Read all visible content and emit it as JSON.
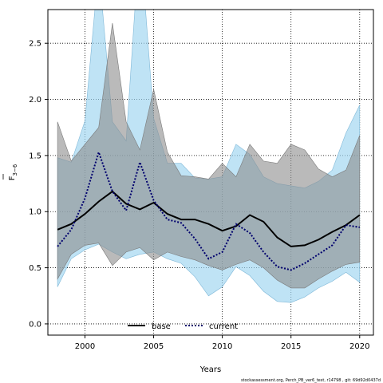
{
  "chart_data": {
    "type": "line",
    "title": "",
    "xlabel": "Years",
    "ylabel_main": "F",
    "ylabel_sub": "3−6",
    "xlim": [
      1997.3,
      2021.0
    ],
    "ylim": [
      -0.1,
      2.8
    ],
    "xticks": [
      2000,
      2005,
      2010,
      2015,
      2020
    ],
    "yticks": [
      "0.0",
      "0.5",
      "1.0",
      "1.5",
      "2.0",
      "2.5"
    ],
    "grid": true,
    "legend_position": "bottom-center",
    "x": [
      1998,
      1999,
      2000,
      2001,
      2002,
      2003,
      2004,
      2005,
      2006,
      2007,
      2008,
      2009,
      2010,
      2011,
      2012,
      2013,
      2014,
      2015,
      2016,
      2017,
      2018,
      2019,
      2020
    ],
    "series": [
      {
        "name": "base",
        "color": "#000000",
        "linestyle": "solid",
        "band_color": "#8c8c8c",
        "values": [
          0.84,
          0.89,
          0.98,
          1.09,
          1.18,
          1.07,
          1.02,
          1.08,
          0.98,
          0.93,
          0.93,
          0.89,
          0.83,
          0.87,
          0.97,
          0.91,
          0.77,
          0.69,
          0.7,
          0.75,
          0.82,
          0.88,
          0.97
        ],
        "lower": [
          0.4,
          0.62,
          0.7,
          0.72,
          0.52,
          0.64,
          0.68,
          0.57,
          0.64,
          0.6,
          0.57,
          0.52,
          0.48,
          0.53,
          0.57,
          0.5,
          0.39,
          0.32,
          0.32,
          0.4,
          0.47,
          0.53,
          0.55
        ],
        "upper": [
          1.8,
          1.45,
          1.6,
          1.75,
          2.68,
          1.8,
          1.55,
          2.09,
          1.53,
          1.32,
          1.31,
          1.29,
          1.43,
          1.31,
          1.6,
          1.45,
          1.43,
          1.6,
          1.55,
          1.38,
          1.31,
          1.37,
          1.68
        ]
      },
      {
        "name": "current",
        "color": "#00006e",
        "linestyle": "dotted",
        "band_color": "#9dd4f0",
        "values": [
          0.69,
          0.84,
          1.12,
          1.53,
          1.18,
          1.01,
          1.44,
          1.1,
          0.93,
          0.9,
          0.76,
          0.58,
          0.64,
          0.89,
          0.81,
          0.64,
          0.51,
          0.48,
          0.54,
          0.62,
          0.7,
          0.88,
          0.86
        ],
        "lower": [
          0.33,
          0.58,
          0.66,
          0.71,
          0.64,
          0.58,
          0.62,
          0.64,
          0.58,
          0.54,
          0.42,
          0.25,
          0.33,
          0.51,
          0.43,
          0.29,
          0.2,
          0.19,
          0.24,
          0.32,
          0.38,
          0.46,
          0.37
        ],
        "upper": [
          1.48,
          1.44,
          1.81,
          3.18,
          1.8,
          1.63,
          3.47,
          1.83,
          1.43,
          1.43,
          1.3,
          1.29,
          1.31,
          1.6,
          1.51,
          1.31,
          1.25,
          1.23,
          1.21,
          1.27,
          1.37,
          1.7,
          1.95
        ]
      }
    ]
  },
  "footer": "stockassessment.org, Perch_PB_ver6_test, r14798 , git: 69d92d0437d"
}
